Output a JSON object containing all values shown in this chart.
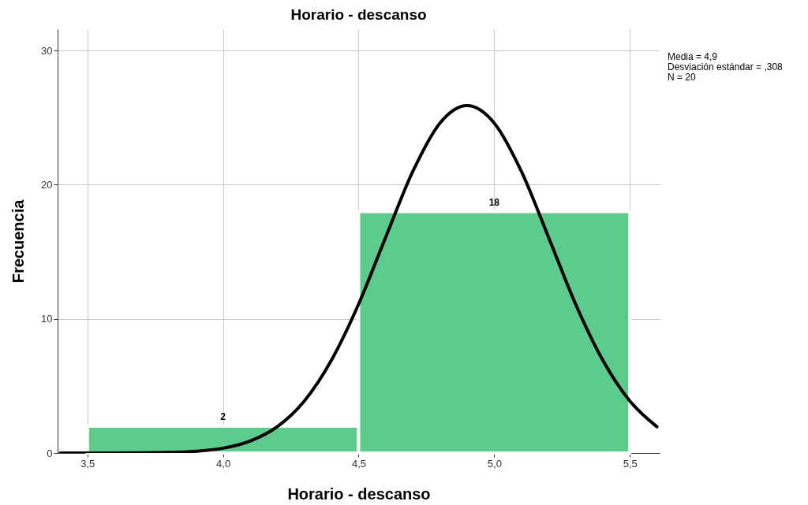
{
  "chart_data": {
    "type": "histogram",
    "title": "Horario - descanso",
    "xlabel": "Horario - descanso",
    "ylabel": "Frecuencia",
    "bins": [
      3.5,
      4.5,
      5.5
    ],
    "values": [
      2,
      18
    ],
    "color": "#5ccb8c",
    "value_labels": [
      "2",
      "18"
    ],
    "series": [
      {
        "type": "line",
        "color": "#000000",
        "x": [
          3.4,
          3.6,
          3.8,
          3.9,
          4.0,
          4.1,
          4.2,
          4.3,
          4.4,
          4.5,
          4.6,
          4.7,
          4.8,
          4.9,
          5.0,
          5.1,
          5.2,
          5.3,
          5.4,
          5.5,
          5.6
        ],
        "values": [
          0.0,
          0.0,
          0.04,
          0.13,
          0.36,
          0.89,
          1.96,
          3.88,
          6.93,
          11.1,
          16.1,
          21.0,
          24.6,
          25.9,
          24.6,
          21.0,
          16.1,
          11.1,
          6.93,
          3.88,
          1.96
        ]
      }
    ],
    "xlim": [
      3.39,
      5.61
    ],
    "xticks": [
      {
        "value": 3.5,
        "label": "3,5"
      },
      {
        "value": 4.0,
        "label": "4,0"
      },
      {
        "value": 4.5,
        "label": "4,5"
      },
      {
        "value": 5.0,
        "label": "5,0"
      },
      {
        "value": 5.5,
        "label": "5,5"
      }
    ],
    "ylim": [
      0,
      31.6
    ],
    "yticks": [
      0,
      10,
      20,
      30
    ],
    "grid": true,
    "annotations": [
      "Media = 4,9",
      "Desviación estándar = ,308",
      "N = 20"
    ]
  }
}
